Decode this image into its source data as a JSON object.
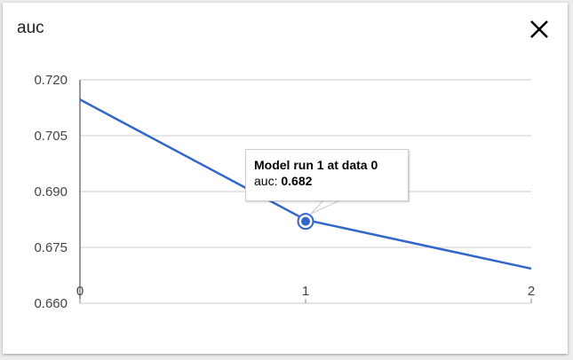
{
  "dialog": {
    "title": "auc",
    "close_icon": "close-icon"
  },
  "tooltip": {
    "title": "Model run 1 at data 0",
    "label": "auc:",
    "value": "0.682"
  },
  "colors": {
    "line": "#3366cc",
    "grid": "#cccccc",
    "axis": "#333333"
  },
  "chart_data": {
    "type": "line",
    "title": "auc",
    "x": [
      0,
      1,
      2
    ],
    "series": [
      {
        "values": [
          0.7147,
          0.6824,
          0.6693
        ]
      }
    ],
    "xlim": [
      0,
      2
    ],
    "ylim": [
      0.66,
      0.72
    ],
    "x_ticks": [
      "0",
      "1",
      "2"
    ],
    "y_ticks": [
      "0.720",
      "0.705",
      "0.690",
      "0.675",
      "0.660"
    ],
    "grid": true,
    "highlighted_point": {
      "x": 1,
      "y": 0.682
    }
  }
}
